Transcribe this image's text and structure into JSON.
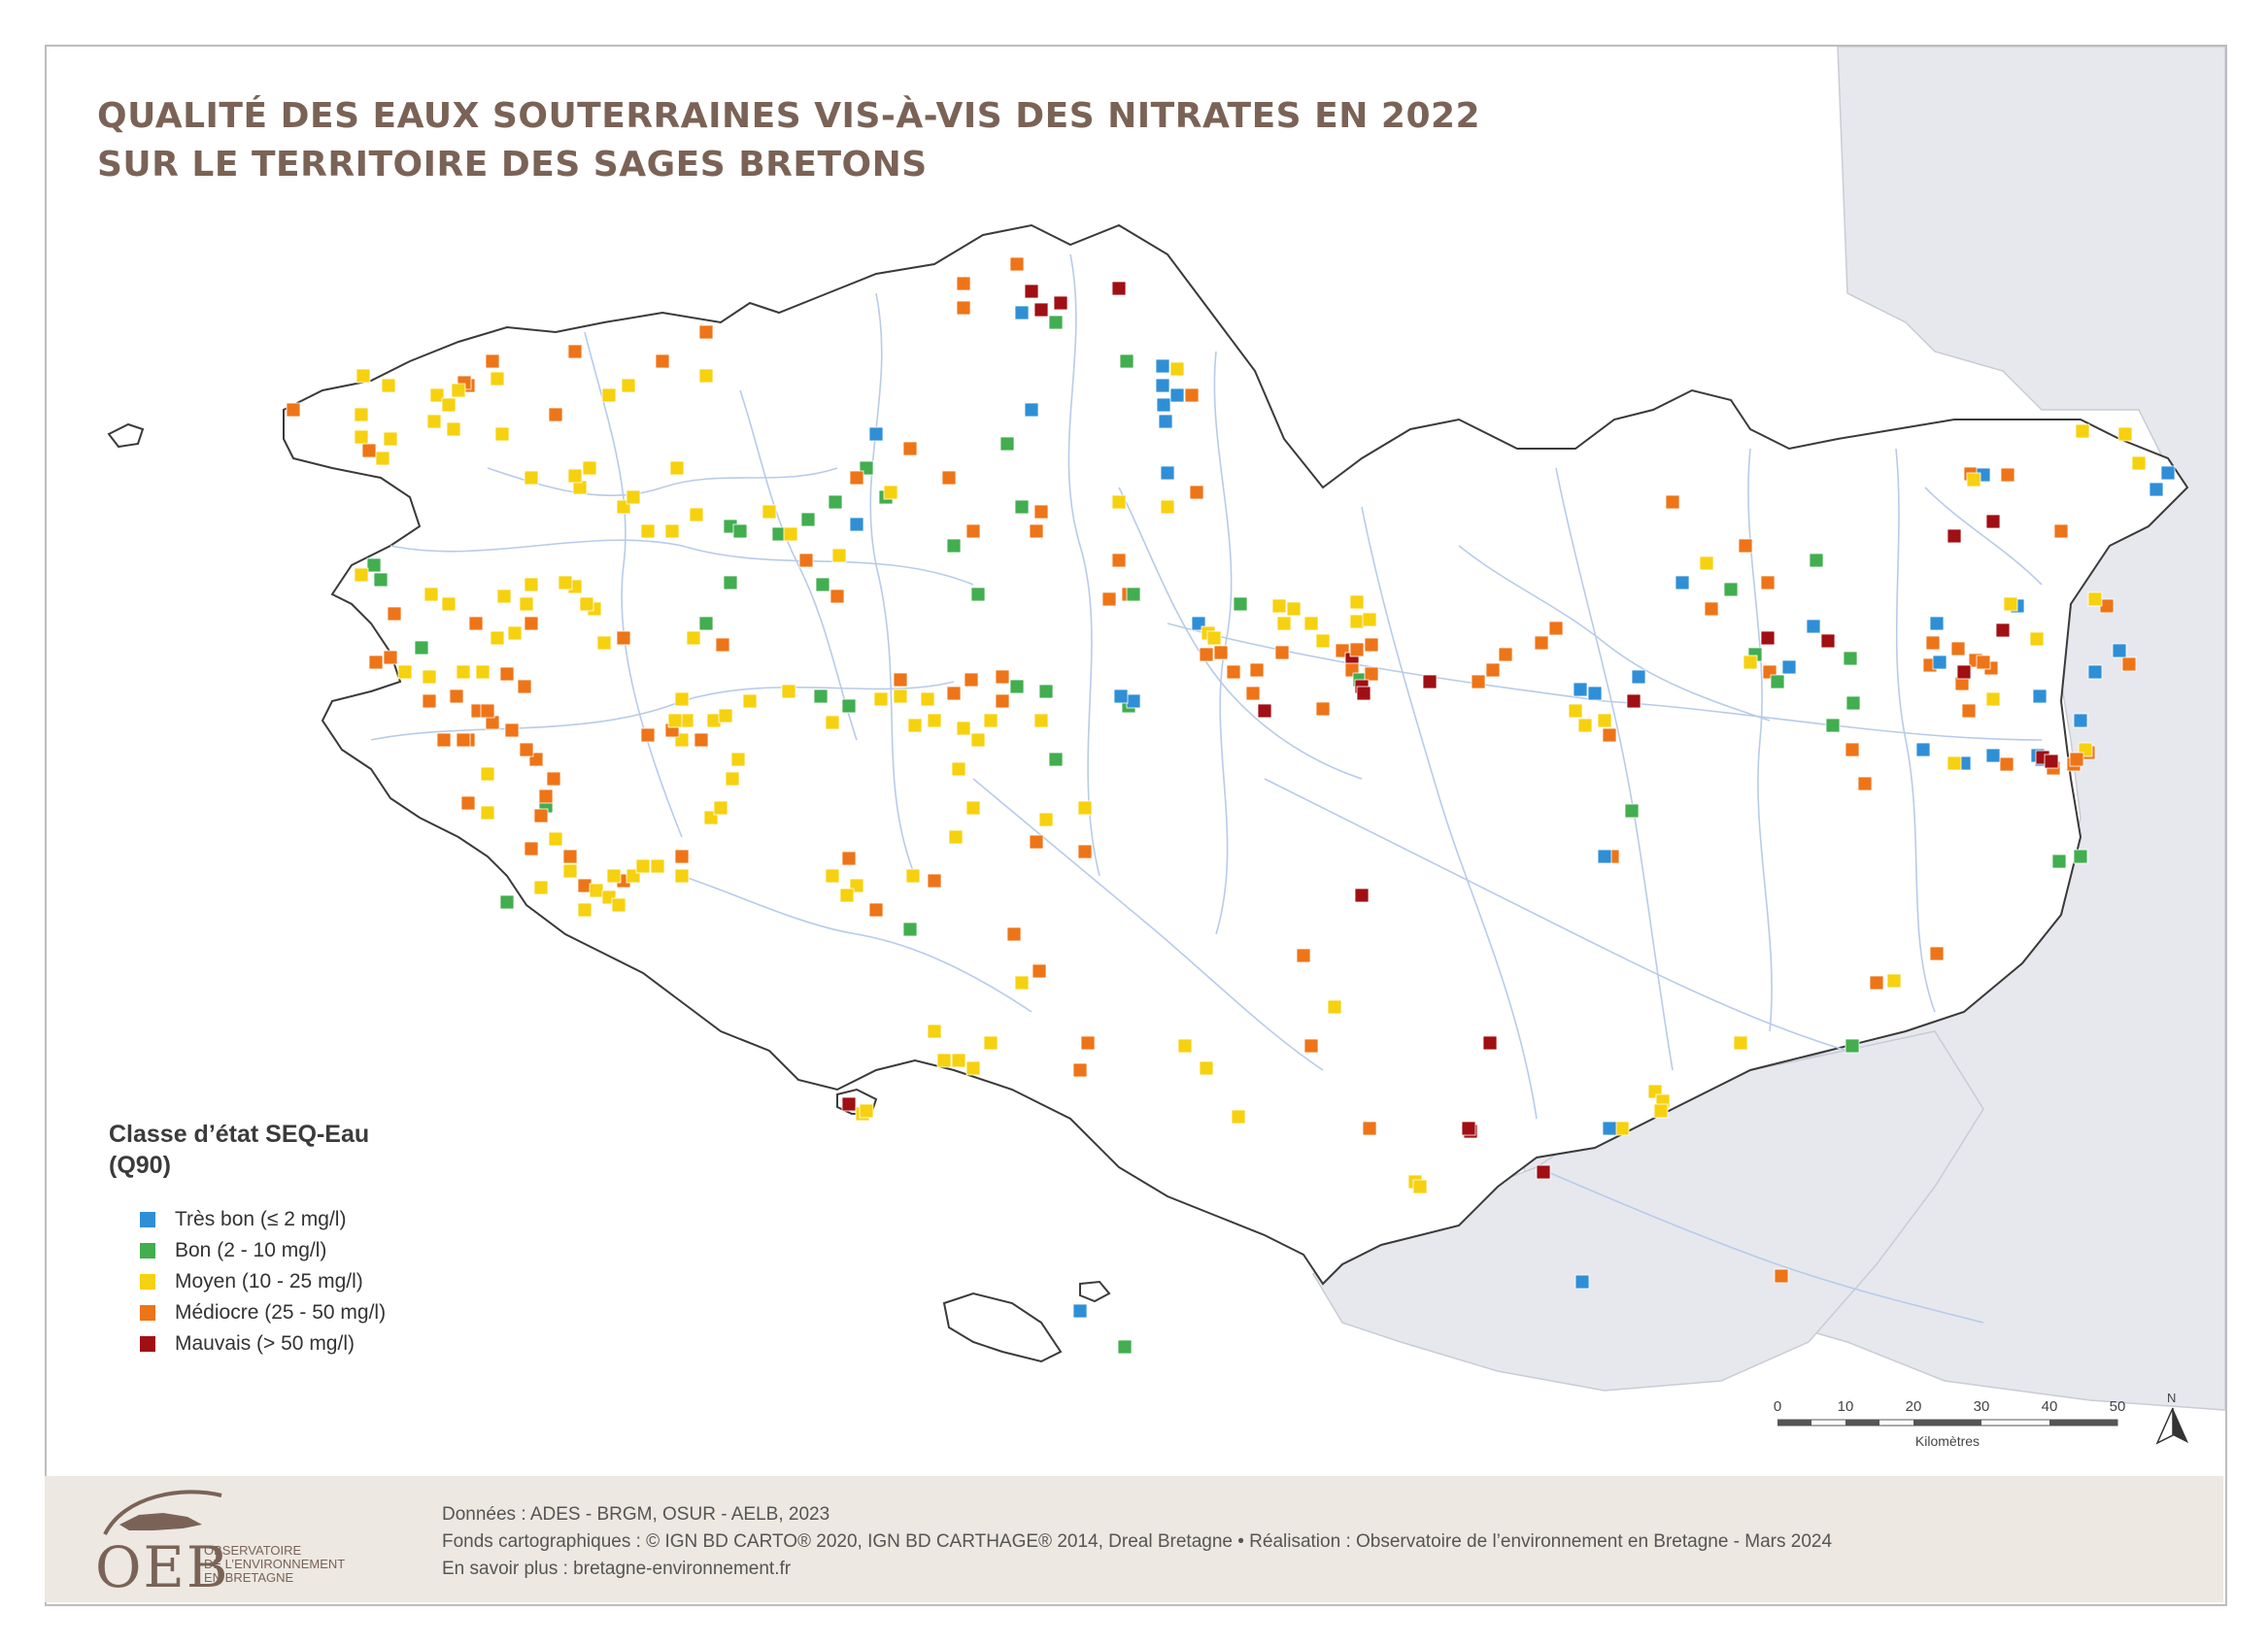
{
  "title": {
    "line1": "QUALITÉ DES EAUX SOUTERRAINES VIS-À-VIS DES NITRATES EN 2022",
    "line2": "SUR LE TERRITOIRE DES SAGES BRETONS"
  },
  "legend": {
    "title_line1": "Classe d’état SEQ-Eau",
    "title_line2": "(Q90)",
    "items": [
      {
        "label": "Très bon (≤ 2 mg/l)",
        "color": "#2f8fd6"
      },
      {
        "label": "Bon (2 - 10 mg/l)",
        "color": "#42ae4f"
      },
      {
        "label": "Moyen (10 - 25 mg/l)",
        "color": "#f6d10f"
      },
      {
        "label": "Médiocre (25 - 50 mg/l)",
        "color": "#ee7418"
      },
      {
        "label": "Mauvais (> 50 mg/l)",
        "color": "#a00f13"
      }
    ]
  },
  "scale": {
    "ticks": [
      "0",
      "10",
      "20",
      "30",
      "40",
      "50"
    ],
    "unit": "Kilomètres"
  },
  "north_label": "N",
  "credits": {
    "line1": "Données : ADES - BRGM, OSUR - AELB, 2023",
    "line2": "Fonds cartographiques : © IGN BD CARTO® 2020, IGN BD CARTHAGE® 2014, Dreal Bretagne • Réalisation : Observatoire de l’environnement en Bretagne - Mars 2024",
    "line3": "En savoir plus : bretagne-environnement.fr"
  },
  "logo": {
    "acronym": "OEB",
    "sub1": "OBSERVATOIRE",
    "sub2": "DE L’ENVIRONNEMENT",
    "sub3": "EN BRETAGNE"
  },
  "colors": {
    "land": "#ffffff",
    "outside_land": "#e6e8ee",
    "river": "#b8cbea",
    "coast": "#3a3a3a",
    "title": "#7a6356",
    "footer": "#ede8e2"
  }
}
